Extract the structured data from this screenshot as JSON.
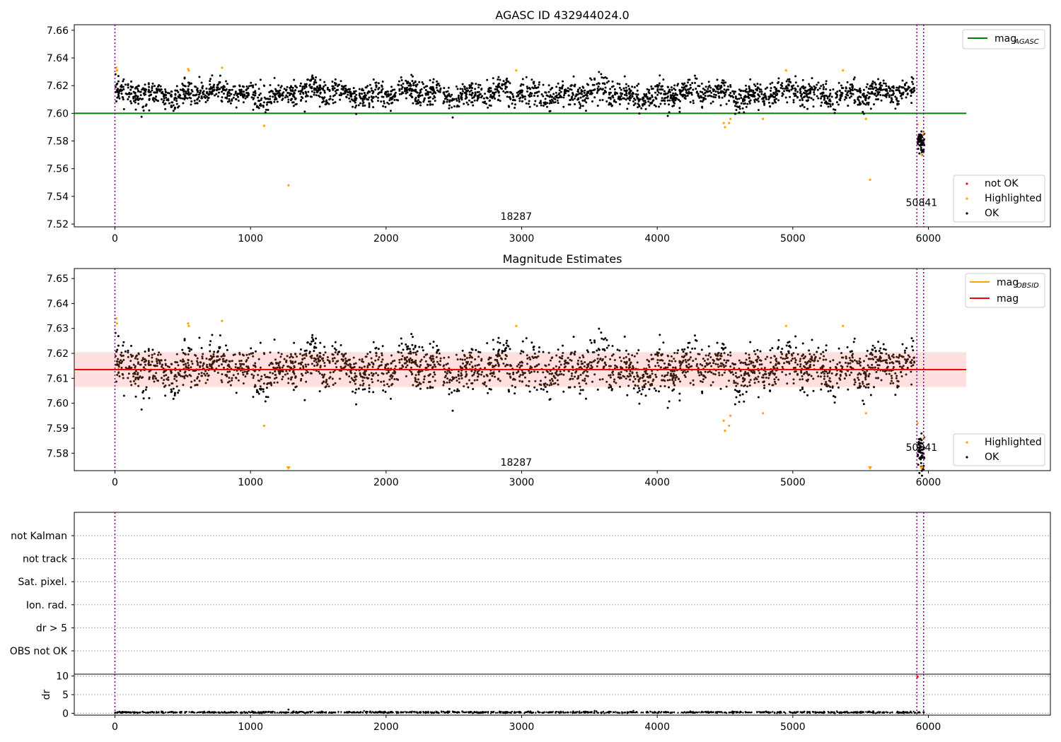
{
  "chart_data": [
    {
      "type": "scatter",
      "title": "AGASC ID 432944024.0",
      "xlabel": "",
      "ylabel": "",
      "xlim": [
        -300,
        6900
      ],
      "ylim": [
        7.518,
        7.664
      ],
      "xticks": [
        0,
        1000,
        2000,
        3000,
        4000,
        5000,
        6000
      ],
      "yticks": [
        7.52,
        7.54,
        7.56,
        7.58,
        7.6,
        7.62,
        7.64,
        7.66
      ],
      "ytick_labels": [
        "7.52",
        "7.54",
        "7.56",
        "7.58",
        "7.60",
        "7.62",
        "7.64",
        "7.66"
      ],
      "vlines": [
        0,
        5915,
        5965
      ],
      "hline": {
        "name": "mag_AGASC",
        "value": 7.6,
        "x_range": [
          -300,
          6280
        ],
        "color": "#008000"
      },
      "series": [
        {
          "name": "not OK",
          "color": "#ff0000",
          "points": []
        },
        {
          "name": "Highlighted",
          "color": "#ffa500",
          "points": [
            [
              10,
              7.633
            ],
            [
              15,
              7.631
            ],
            [
              540,
              7.632
            ],
            [
              545,
              7.631
            ],
            [
              790,
              7.633
            ],
            [
              1100,
              7.591
            ],
            [
              1280,
              7.548
            ],
            [
              2960,
              7.631
            ],
            [
              4490,
              7.593
            ],
            [
              4500,
              7.59
            ],
            [
              4530,
              7.593
            ],
            [
              4540,
              7.596
            ],
            [
              4780,
              7.596
            ],
            [
              4950,
              7.631
            ],
            [
              5370,
              7.631
            ],
            [
              5540,
              7.596
            ],
            [
              5570,
              7.552
            ],
            [
              5920,
              7.592
            ],
            [
              5950,
              7.57
            ],
            [
              5965,
              7.586
            ]
          ]
        },
        {
          "name": "OK",
          "color": "#000000",
          "points": []
        }
      ],
      "ok_band": {
        "x_range": [
          0,
          5900
        ],
        "center": 7.614,
        "spread": 0.008,
        "min": 7.597,
        "max": 7.63
      },
      "ok_cluster": {
        "x_range": [
          5920,
          5970
        ],
        "center": 7.579,
        "spread": 0.005
      },
      "annotations": [
        {
          "text": "18287",
          "x": 2960,
          "y": 7.523
        },
        {
          "text": "50841",
          "x": 5950,
          "y": 7.533
        }
      ],
      "legends": [
        {
          "placement": "upper right",
          "entries": [
            {
              "label": "mag",
              "sub": "AGASC",
              "kind": "line",
              "color": "#008000"
            }
          ]
        },
        {
          "placement": "lower right",
          "entries": [
            {
              "label": "not OK",
              "kind": "dot",
              "color": "#ff0000"
            },
            {
              "label": "Highlighted",
              "kind": "dot",
              "color": "#ffa500"
            },
            {
              "label": "OK",
              "kind": "dot",
              "color": "#000000"
            }
          ]
        }
      ]
    },
    {
      "type": "scatter",
      "title": "Magnitude Estimates",
      "xlabel": "",
      "ylabel": "",
      "xlim": [
        -300,
        6900
      ],
      "ylim": [
        7.573,
        7.654
      ],
      "xticks": [
        0,
        1000,
        2000,
        3000,
        4000,
        5000,
        6000
      ],
      "yticks": [
        7.58,
        7.59,
        7.6,
        7.61,
        7.62,
        7.63,
        7.64,
        7.65
      ],
      "ytick_labels": [
        "7.58",
        "7.59",
        "7.60",
        "7.61",
        "7.62",
        "7.63",
        "7.64",
        "7.65"
      ],
      "vlines": [
        0,
        5915,
        5965
      ],
      "mag": {
        "name": "mag",
        "value": 7.6135,
        "band": [
          7.6065,
          7.6205
        ],
        "x_range": [
          -300,
          6280
        ],
        "color": "#ff0000"
      },
      "mag_obsid": {
        "name": "mag_OBSID",
        "color": "#ffa500",
        "segments": [
          {
            "x": [
              0,
              5900
            ],
            "value": 7.6135
          }
        ]
      },
      "series": [
        {
          "name": "Highlighted",
          "color": "#ffa500",
          "points": [
            [
              10,
              7.634
            ],
            [
              15,
              7.632
            ],
            [
              540,
              7.632
            ],
            [
              545,
              7.631
            ],
            [
              790,
              7.633
            ],
            [
              1100,
              7.591
            ],
            [
              2960,
              7.631
            ],
            [
              4490,
              7.593
            ],
            [
              4500,
              7.589
            ],
            [
              4530,
              7.591
            ],
            [
              4540,
              7.595
            ],
            [
              4780,
              7.596
            ],
            [
              4950,
              7.631
            ],
            [
              5370,
              7.631
            ],
            [
              5540,
              7.596
            ],
            [
              5920,
              7.592
            ],
            [
              5965,
              7.586
            ]
          ]
        },
        {
          "name": "OK",
          "color": "#000000",
          "points": []
        }
      ],
      "clipped_low_markers": [
        1280,
        5570,
        5950
      ],
      "ok_band": {
        "x_range": [
          0,
          5900
        ],
        "center": 7.614,
        "spread": 0.008,
        "min": 7.597,
        "max": 7.63
      },
      "ok_cluster": {
        "x_range": [
          5920,
          5970
        ],
        "center": 7.58,
        "spread": 0.005
      },
      "annotations": [
        {
          "text": "18287",
          "x": 2960,
          "y": 7.575
        },
        {
          "text": "50841",
          "x": 5950,
          "y": 7.581
        }
      ],
      "legends": [
        {
          "placement": "upper right",
          "entries": [
            {
              "label": "mag",
              "sub": "OBSID",
              "kind": "line",
              "color": "#ffa500"
            },
            {
              "label": "mag",
              "kind": "line",
              "color": "#ff0000"
            }
          ]
        },
        {
          "placement": "lower right",
          "entries": [
            {
              "label": "Highlighted",
              "kind": "dot",
              "color": "#ffa500"
            },
            {
              "label": "OK",
              "kind": "dot",
              "color": "#000000"
            }
          ]
        }
      ]
    },
    {
      "type": "scatter",
      "title": "",
      "xlim": [
        -300,
        6900
      ],
      "categories": [
        "not Kalman",
        "not track",
        "Sat. pixel.",
        "Ion. rad.",
        "dr > 5",
        "OBS not OK"
      ],
      "vlines": [
        0,
        5915,
        5965
      ],
      "flags": []
    },
    {
      "type": "scatter",
      "title": "",
      "xlabel": "",
      "ylabel": "dr",
      "xlim": [
        -300,
        6900
      ],
      "ylim": [
        -0.5,
        10.5
      ],
      "xticks": [
        0,
        1000,
        2000,
        3000,
        4000,
        5000,
        6000
      ],
      "yticks": [
        0,
        5,
        10
      ],
      "ytick_labels": [
        "0",
        "5",
        "10"
      ],
      "vlines": [
        0,
        5915,
        5965
      ],
      "red_points": [
        [
          5920,
          9.8
        ]
      ],
      "dr_series": {
        "x_range": [
          0,
          5970
        ],
        "center": 0.25,
        "spread": 0.2,
        "max": 1.0
      },
      "outlier": [
        1280,
        1.0
      ]
    }
  ]
}
